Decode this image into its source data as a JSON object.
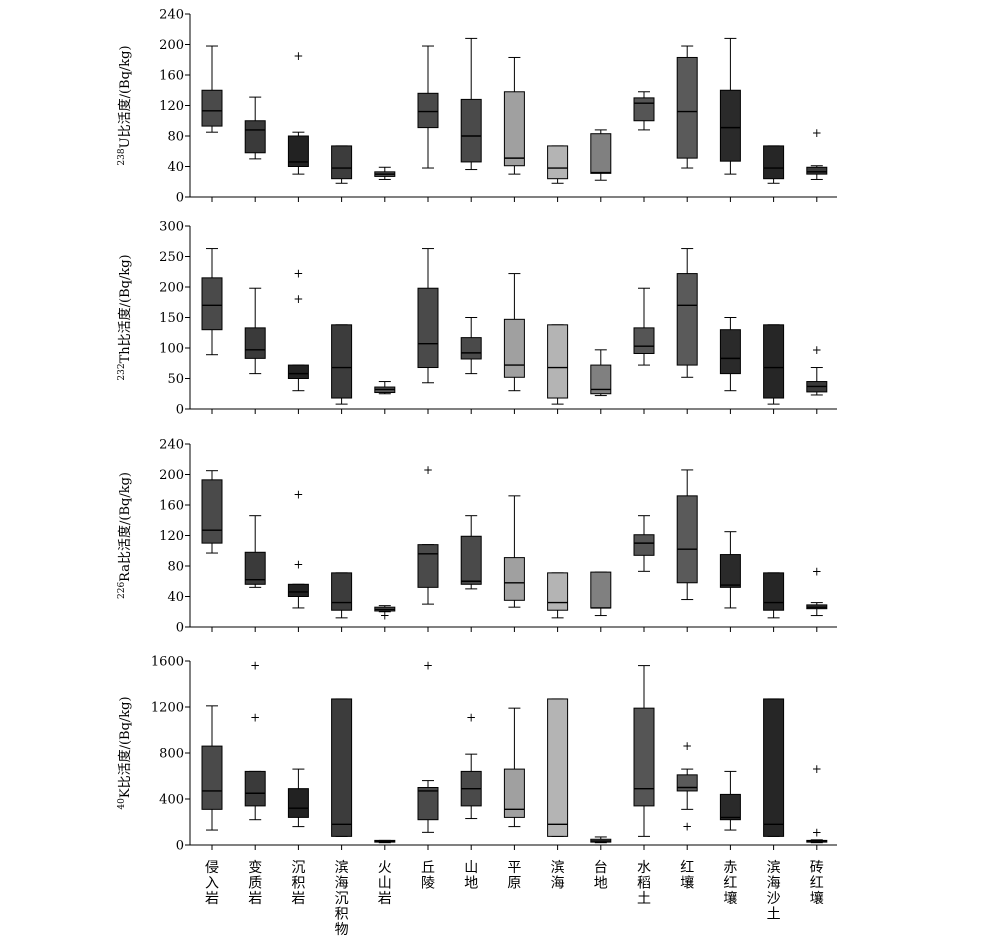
{
  "categories": [
    "侵入岩",
    "变质岩",
    "沉积岩",
    "滨海沉积物",
    "火山岩",
    "丘陵",
    "山地",
    "平原",
    "滨海",
    "台地",
    "水稻土",
    "红壤",
    "赤红壤",
    "滨海沙土",
    "砖红壤"
  ],
  "colors": {
    "侵入岩": "#4a4a4a",
    "变质岩": "#3a3a3a",
    "沉积岩": "#222222",
    "滨海沉积物": "#3c3c3c",
    "火山岩": "#555555",
    "丘陵": "#4a4a4a",
    "山地": "#4a4a4a",
    "平原": "#a0a0a0",
    "滨海": "#b4b4b4",
    "台地": "#808080",
    "水稻土": "#555555",
    "红壤": "#5a5a5a",
    "赤红壤": "#2a2a2a",
    "滨海沙土": "#262626",
    "砖红壤": "#3a3a3a"
  },
  "chart_data": [
    {
      "type": "box",
      "ylabel_sup": "238",
      "ylabel": "U比活度/(Bq/kg)",
      "ylim": [
        0,
        240
      ],
      "yticks": [
        0,
        40,
        80,
        120,
        160,
        200,
        240
      ],
      "boxes": [
        {
          "min": 85,
          "q1": 93,
          "median": 113,
          "q3": 140,
          "max": 198,
          "outliers": []
        },
        {
          "min": 50,
          "q1": 58,
          "median": 88,
          "q3": 100,
          "max": 131,
          "outliers": []
        },
        {
          "min": 30,
          "q1": 40,
          "median": 46,
          "q3": 80,
          "max": 85,
          "outliers": [
            185
          ]
        },
        {
          "min": 18,
          "q1": 24,
          "median": 38,
          "q3": 67,
          "max": 67,
          "outliers": []
        },
        {
          "min": 23,
          "q1": 27,
          "median": 30,
          "q3": 33,
          "max": 39,
          "outliers": []
        },
        {
          "min": 38,
          "q1": 91,
          "median": 112,
          "q3": 136,
          "max": 198,
          "outliers": []
        },
        {
          "min": 36,
          "q1": 46,
          "median": 80,
          "q3": 128,
          "max": 208,
          "outliers": []
        },
        {
          "min": 30,
          "q1": 41,
          "median": 51,
          "q3": 138,
          "max": 183,
          "outliers": []
        },
        {
          "min": 18,
          "q1": 24,
          "median": 38,
          "q3": 67,
          "max": 67,
          "outliers": []
        },
        {
          "min": 22,
          "q1": 31,
          "median": 32,
          "q3": 83,
          "max": 88,
          "outliers": []
        },
        {
          "min": 88,
          "q1": 100,
          "median": 123,
          "q3": 130,
          "max": 138,
          "outliers": []
        },
        {
          "min": 38,
          "q1": 51,
          "median": 112,
          "q3": 183,
          "max": 198,
          "outliers": []
        },
        {
          "min": 30,
          "q1": 47,
          "median": 91,
          "q3": 140,
          "max": 208,
          "outliers": []
        },
        {
          "min": 18,
          "q1": 24,
          "median": 38,
          "q3": 67,
          "max": 67,
          "outliers": []
        },
        {
          "min": 23,
          "q1": 30,
          "median": 33,
          "q3": 39,
          "max": 41,
          "outliers": [
            84
          ]
        }
      ]
    },
    {
      "type": "box",
      "ylabel_sup": "232",
      "ylabel": "Th比活度/(Bq/kg)",
      "ylim": [
        0,
        300
      ],
      "yticks": [
        0,
        50,
        100,
        150,
        200,
        250,
        300
      ],
      "boxes": [
        {
          "min": 89,
          "q1": 130,
          "median": 170,
          "q3": 215,
          "max": 263,
          "outliers": []
        },
        {
          "min": 58,
          "q1": 83,
          "median": 97,
          "q3": 133,
          "max": 198,
          "outliers": []
        },
        {
          "min": 30,
          "q1": 50,
          "median": 58,
          "q3": 72,
          "max": 72,
          "outliers": [
            180,
            222
          ]
        },
        {
          "min": 8,
          "q1": 18,
          "median": 68,
          "q3": 138,
          "max": 138,
          "outliers": []
        },
        {
          "min": 25,
          "q1": 27,
          "median": 32,
          "q3": 36,
          "max": 45,
          "outliers": []
        },
        {
          "min": 43,
          "q1": 68,
          "median": 107,
          "q3": 198,
          "max": 263,
          "outliers": []
        },
        {
          "min": 58,
          "q1": 82,
          "median": 92,
          "q3": 117,
          "max": 150,
          "outliers": []
        },
        {
          "min": 30,
          "q1": 52,
          "median": 72,
          "q3": 147,
          "max": 222,
          "outliers": []
        },
        {
          "min": 8,
          "q1": 18,
          "median": 68,
          "q3": 138,
          "max": 138,
          "outliers": []
        },
        {
          "min": 22,
          "q1": 25,
          "median": 32,
          "q3": 72,
          "max": 97,
          "outliers": []
        },
        {
          "min": 72,
          "q1": 91,
          "median": 103,
          "q3": 133,
          "max": 198,
          "outliers": []
        },
        {
          "min": 52,
          "q1": 72,
          "median": 170,
          "q3": 222,
          "max": 263,
          "outliers": []
        },
        {
          "min": 30,
          "q1": 58,
          "median": 83,
          "q3": 130,
          "max": 150,
          "outliers": []
        },
        {
          "min": 8,
          "q1": 18,
          "median": 68,
          "q3": 138,
          "max": 138,
          "outliers": []
        },
        {
          "min": 23,
          "q1": 28,
          "median": 37,
          "q3": 45,
          "max": 68,
          "outliers": [
            97
          ]
        }
      ]
    },
    {
      "type": "box",
      "ylabel_sup": "226",
      "ylabel": "Ra比活度/(Bq/kg)",
      "ylim": [
        0,
        240
      ],
      "yticks": [
        0,
        40,
        80,
        120,
        160,
        200,
        240
      ],
      "boxes": [
        {
          "min": 97,
          "q1": 110,
          "median": 127,
          "q3": 193,
          "max": 205,
          "outliers": []
        },
        {
          "min": 52,
          "q1": 56,
          "median": 62,
          "q3": 98,
          "max": 146,
          "outliers": []
        },
        {
          "min": 25,
          "q1": 40,
          "median": 46,
          "q3": 56,
          "max": 56,
          "outliers": [
            82,
            174
          ]
        },
        {
          "min": 12,
          "q1": 22,
          "median": 32,
          "q3": 71,
          "max": 71,
          "outliers": []
        },
        {
          "min": 20,
          "q1": 21,
          "median": 23,
          "q3": 26,
          "max": 28,
          "outliers": [
            15
          ]
        },
        {
          "min": 30,
          "q1": 52,
          "median": 96,
          "q3": 108,
          "max": 108,
          "outliers": [
            206
          ]
        },
        {
          "min": 50,
          "q1": 56,
          "median": 60,
          "q3": 119,
          "max": 146,
          "outliers": []
        },
        {
          "min": 26,
          "q1": 35,
          "median": 58,
          "q3": 91,
          "max": 172,
          "outliers": []
        },
        {
          "min": 12,
          "q1": 22,
          "median": 32,
          "q3": 71,
          "max": 71,
          "outliers": []
        },
        {
          "min": 15,
          "q1": 25,
          "median": 25,
          "q3": 72,
          "max": 72,
          "outliers": []
        },
        {
          "min": 73,
          "q1": 94,
          "median": 110,
          "q3": 121,
          "max": 146,
          "outliers": []
        },
        {
          "min": 36,
          "q1": 58,
          "median": 102,
          "q3": 172,
          "max": 206,
          "outliers": []
        },
        {
          "min": 25,
          "q1": 52,
          "median": 55,
          "q3": 95,
          "max": 125,
          "outliers": []
        },
        {
          "min": 12,
          "q1": 22,
          "median": 32,
          "q3": 71,
          "max": 71,
          "outliers": []
        },
        {
          "min": 15,
          "q1": 24,
          "median": 26,
          "q3": 29,
          "max": 32,
          "outliers": [
            73
          ]
        }
      ]
    },
    {
      "type": "box",
      "ylabel_sup": "40",
      "ylabel": "K比活度/(Bq/kg)",
      "ylim": [
        0,
        1600
      ],
      "yticks": [
        0,
        400,
        800,
        1200,
        1600
      ],
      "boxes": [
        {
          "min": 130,
          "q1": 310,
          "median": 470,
          "q3": 860,
          "max": 1210,
          "outliers": []
        },
        {
          "min": 220,
          "q1": 340,
          "median": 450,
          "q3": 640,
          "max": 640,
          "outliers": [
            1110,
            1560
          ]
        },
        {
          "min": 160,
          "q1": 240,
          "median": 320,
          "q3": 490,
          "max": 660,
          "outliers": []
        },
        {
          "min": 75,
          "q1": 75,
          "median": 180,
          "q3": 1270,
          "max": 1270,
          "outliers": []
        },
        {
          "min": 20,
          "q1": 25,
          "median": 30,
          "q3": 40,
          "max": 40,
          "outliers": []
        },
        {
          "min": 110,
          "q1": 220,
          "median": 470,
          "q3": 500,
          "max": 560,
          "outliers": [
            1560
          ]
        },
        {
          "min": 230,
          "q1": 340,
          "median": 490,
          "q3": 640,
          "max": 790,
          "outliers": [
            1110
          ]
        },
        {
          "min": 160,
          "q1": 240,
          "median": 310,
          "q3": 660,
          "max": 1190,
          "outliers": []
        },
        {
          "min": 75,
          "q1": 75,
          "median": 180,
          "q3": 1270,
          "max": 1270,
          "outliers": []
        },
        {
          "min": 20,
          "q1": 25,
          "median": 35,
          "q3": 50,
          "max": 70,
          "outliers": []
        },
        {
          "min": 75,
          "q1": 340,
          "median": 490,
          "q3": 1190,
          "max": 1560,
          "outliers": []
        },
        {
          "min": 310,
          "q1": 470,
          "median": 500,
          "q3": 610,
          "max": 660,
          "outliers": [
            160,
            860
          ]
        },
        {
          "min": 130,
          "q1": 220,
          "median": 240,
          "q3": 440,
          "max": 640,
          "outliers": []
        },
        {
          "min": 75,
          "q1": 75,
          "median": 180,
          "q3": 1270,
          "max": 1270,
          "outliers": []
        },
        {
          "min": 20,
          "q1": 25,
          "median": 35,
          "q3": 40,
          "max": 45,
          "outliers": [
            110,
            660
          ]
        }
      ]
    }
  ]
}
